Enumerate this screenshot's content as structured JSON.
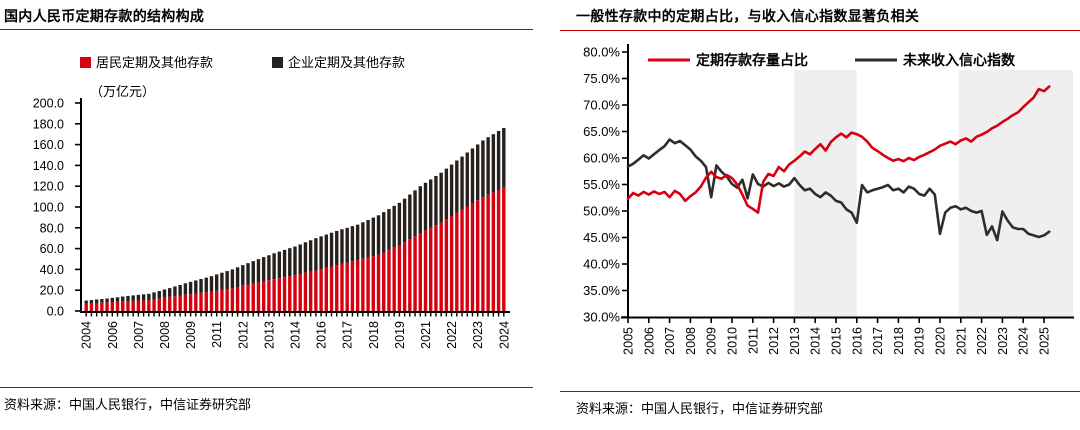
{
  "page": {
    "background": "#ffffff",
    "accent_red": "#c00000",
    "band_gray": "#efefef"
  },
  "chart_data": [
    {
      "panel": "left",
      "type": "bar",
      "stacked": true,
      "title": "国内人民币定期存款的结构构成",
      "unit_label": "（万亿元）",
      "source": "资料来源：中国人民银行，中信证券研究部",
      "frequency": "quarterly",
      "x_start": "2004Q4",
      "x_end": "2024Q4",
      "ylim": [
        0,
        200
      ],
      "y_tick_labels": [
        "0.0",
        "20.0",
        "40.0",
        "60.0",
        "80.0",
        "100.0",
        "120.0",
        "140.0",
        "160.0",
        "180.0",
        "200.0"
      ],
      "x_tick_labels": [
        "2004",
        "2006",
        "2007",
        "2008",
        "2009",
        "2011",
        "2012",
        "2013",
        "2014",
        "2016",
        "2017",
        "2018",
        "2019",
        "2021",
        "2022",
        "2023",
        "2024"
      ],
      "x_label_every_n_bars": 5,
      "series": [
        {
          "name": "居民定期及其他存款",
          "color": "#d7000f",
          "values": [
            7.0,
            7.3,
            7.7,
            8.0,
            8.3,
            8.6,
            8.9,
            9.3,
            9.6,
            9.8,
            10.0,
            10.1,
            10.3,
            11.1,
            11.9,
            12.8,
            13.6,
            14.3,
            14.9,
            15.6,
            16.2,
            16.8,
            17.4,
            17.9,
            18.5,
            19.4,
            20.3,
            21.1,
            22.0,
            23.1,
            24.3,
            25.4,
            26.5,
            27.5,
            28.5,
            29.5,
            30.5,
            31.5,
            32.5,
            33.5,
            34.5,
            35.6,
            36.8,
            37.9,
            39.0,
            40.3,
            41.5,
            42.8,
            44.0,
            45.3,
            46.5,
            47.8,
            49.0,
            50.3,
            51.5,
            52.8,
            54.0,
            56.3,
            58.5,
            60.8,
            63.0,
            66.0,
            69.0,
            72.0,
            75.0,
            77.5,
            80.0,
            82.5,
            85.0,
            88.1,
            91.3,
            94.4,
            97.5,
            100.5,
            103.5,
            106.5,
            109.5,
            111.8,
            114.0,
            116.3,
            118.5
          ]
        },
        {
          "name": "企业定期及其他存款",
          "color": "#27211e",
          "values": [
            3.0,
            3.2,
            3.4,
            3.5,
            3.7,
            4.0,
            4.3,
            4.6,
            4.9,
            5.2,
            5.5,
            5.9,
            6.2,
            6.8,
            7.3,
            7.9,
            8.4,
            9.3,
            10.1,
            11.0,
            11.8,
            12.6,
            13.4,
            14.2,
            15.0,
            15.8,
            16.5,
            17.3,
            18.0,
            18.9,
            19.8,
            20.6,
            21.5,
            22.4,
            23.3,
            24.1,
            25.0,
            25.6,
            26.3,
            26.9,
            27.5,
            28.4,
            29.3,
            30.1,
            31.0,
            31.5,
            32.0,
            32.5,
            33.0,
            33.3,
            33.5,
            33.8,
            34.0,
            35.0,
            36.0,
            37.0,
            38.0,
            38.8,
            39.5,
            40.3,
            41.0,
            42.0,
            43.0,
            44.0,
            45.0,
            45.8,
            46.5,
            47.3,
            48.0,
            48.8,
            49.5,
            50.3,
            51.0,
            51.9,
            52.8,
            53.6,
            54.5,
            55.3,
            56.0,
            56.8,
            57.5
          ]
        }
      ]
    },
    {
      "panel": "right",
      "type": "line",
      "title": "一般性存款中的定期占比，与收入信心指数显著负相关",
      "source": "资料来源：中国人民银行，中信证券研究部",
      "frequency": "quarterly",
      "x_start": "2005Q1",
      "x_end": "2025Q2",
      "ylim": [
        30,
        80
      ],
      "y_tick_labels": [
        "30.0%",
        "35.0%",
        "40.0%",
        "45.0%",
        "50.0%",
        "55.0%",
        "60.0%",
        "65.0%",
        "70.0%",
        "75.0%",
        "80.0%"
      ],
      "x_tick_labels": [
        "2005",
        "2006",
        "2007",
        "2008",
        "2009",
        "2010",
        "2011",
        "2012",
        "2013",
        "2014",
        "2015",
        "2016",
        "2017",
        "2018",
        "2019",
        "2020",
        "2021",
        "2022",
        "2023",
        "2024",
        "2025"
      ],
      "shaded_bands": [
        {
          "from_year": 2013.0,
          "to_year": 2016.0
        },
        {
          "from_year": 2020.9,
          "to_year": 2026.5
        }
      ],
      "band_color": "#efefef",
      "series": [
        {
          "name": "定期存款存量占比",
          "color": "#d7000f",
          "values": [
            52.3,
            53.4,
            52.9,
            53.6,
            53.1,
            53.7,
            53.2,
            53.6,
            52.6,
            53.8,
            53.2,
            51.9,
            52.8,
            53.5,
            54.6,
            56.3,
            57.4,
            56.4,
            56.1,
            56.8,
            56.2,
            55.0,
            53.1,
            51.0,
            50.4,
            49.7,
            55.5,
            57.0,
            56.6,
            58.3,
            57.5,
            58.8,
            59.5,
            60.3,
            61.2,
            60.7,
            61.7,
            62.6,
            61.4,
            63.0,
            63.9,
            64.6,
            63.9,
            64.8,
            64.5,
            64.0,
            63.1,
            61.9,
            61.3,
            60.6,
            60.0,
            59.5,
            59.8,
            59.4,
            60.0,
            59.6,
            60.2,
            60.6,
            61.1,
            61.6,
            62.3,
            62.7,
            63.1,
            62.6,
            63.3,
            63.7,
            63.1,
            64.0,
            64.4,
            64.9,
            65.6,
            66.1,
            66.8,
            67.4,
            68.1,
            68.6,
            69.6,
            70.5,
            71.4,
            73.0,
            72.6,
            73.5
          ]
        },
        {
          "name": "未来收入信心指数",
          "color": "#332b28",
          "values": [
            58.4,
            58.9,
            59.7,
            60.5,
            59.9,
            60.7,
            61.5,
            62.2,
            63.5,
            62.8,
            63.2,
            62.4,
            61.6,
            60.3,
            59.5,
            58.3,
            52.6,
            58.6,
            57.4,
            56.5,
            55.1,
            54.4,
            55.9,
            52.4,
            56.9,
            55.1,
            54.6,
            55.3,
            54.7,
            55.2,
            54.6,
            55.0,
            56.2,
            54.9,
            53.9,
            54.2,
            53.2,
            52.6,
            53.5,
            52.9,
            51.9,
            51.6,
            50.3,
            49.7,
            47.8,
            54.9,
            53.5,
            53.9,
            54.2,
            54.5,
            54.9,
            53.9,
            54.2,
            53.5,
            54.6,
            54.2,
            53.2,
            52.9,
            54.2,
            53.1,
            45.7,
            49.7,
            50.6,
            50.9,
            50.3,
            50.6,
            50.0,
            49.7,
            50.0,
            45.5,
            47.1,
            44.5,
            49.9,
            48.2,
            46.9,
            46.6,
            46.6,
            45.7,
            45.4,
            45.1,
            45.4,
            46.1
          ]
        }
      ]
    }
  ]
}
